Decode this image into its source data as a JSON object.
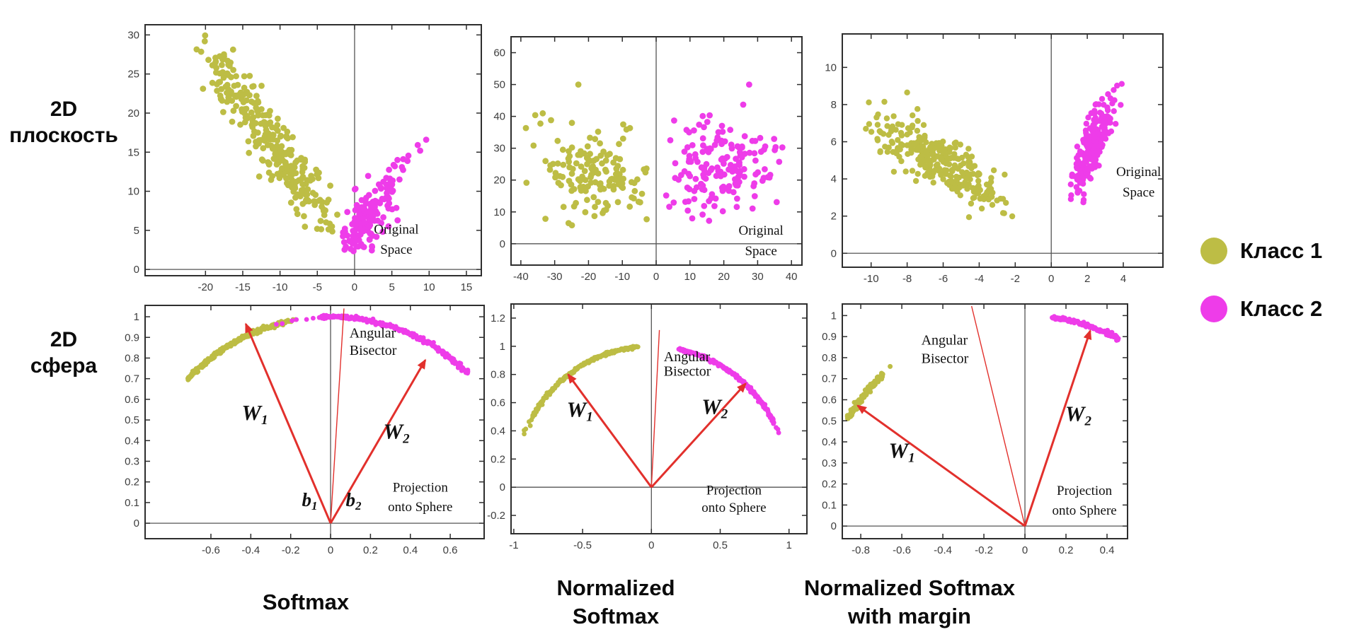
{
  "colors": {
    "class1": "#bdbd45",
    "class2": "#ee3ce9",
    "arrow": "#e2302c",
    "spine": "#2e2e2e",
    "zero_line": "#555555",
    "tick_label": "#3d3d3d",
    "plot_text": "#111111"
  },
  "row_labels": [
    {
      "lines": [
        "2D",
        "плоскость"
      ]
    },
    {
      "lines": [
        "2D",
        "сфера"
      ]
    }
  ],
  "captions": [
    {
      "lines": [
        "Softmax"
      ]
    },
    {
      "lines": [
        "Normalized",
        "Softmax"
      ]
    },
    {
      "lines": [
        "Normalized Softmax",
        "with margin"
      ]
    }
  ],
  "legend": {
    "items": [
      {
        "label": "Класс 1",
        "colorKey": "class1"
      },
      {
        "label": "Класс 2",
        "colorKey": "class2"
      }
    ]
  },
  "chart_data": [
    {
      "id": "original-space-softmax",
      "type": "scatter",
      "method": "Softmax",
      "space": "Original Space",
      "xlim": [
        -28.1,
        17.0
      ],
      "ylim": [
        -0.8,
        31.3
      ],
      "xticks": [
        -20,
        -15,
        -10,
        -5,
        0,
        5,
        10,
        15
      ],
      "yticks": [
        0,
        5,
        10,
        15,
        20,
        25,
        30
      ],
      "zero_lines": true,
      "grid": false,
      "series": [
        {
          "name": "Класс 1",
          "colorKey": "class1",
          "marker": 4.4,
          "gen": {
            "kind": "cluster",
            "seed": 101,
            "n": 300,
            "cx": -11,
            "cy": 16.3,
            "sx": 4.4,
            "sy": 2.3,
            "shear": -1.28,
            "clipX": [
              -21.5,
              -2.2
            ],
            "clipY": [
              3.5,
              30.5
            ]
          },
          "extras": []
        },
        {
          "name": "Класс 2",
          "colorKey": "class2",
          "marker": 4.4,
          "gen": {
            "kind": "cluster",
            "seed": 102,
            "n": 165,
            "cx": 2.0,
            "cy": 6.8,
            "sx": 2.4,
            "sy": 1.9,
            "shear": 1.05,
            "clipX": [
              -1.6,
              10.2
            ],
            "clipY": [
              2.2,
              17.0
            ]
          },
          "extras": [
            [
              9.6,
              16.6
            ],
            [
              8.8,
              15.2
            ]
          ]
        }
      ],
      "texts": [
        {
          "t": "Original",
          "x": 5.6,
          "y": 4.6,
          "s": 19,
          "a": "middle"
        },
        {
          "t": "Space",
          "x": 5.6,
          "y": 2.0,
          "s": 19,
          "a": "middle"
        }
      ],
      "arrows": [],
      "wlabels": []
    },
    {
      "id": "original-space-normalized-softmax",
      "type": "scatter",
      "method": "Normalized Softmax",
      "space": "Original Space",
      "xlim": [
        -42.9,
        43.1
      ],
      "ylim": [
        -6.7,
        65.0
      ],
      "xticks": [
        -40,
        -30,
        -20,
        -10,
        0,
        10,
        20,
        30,
        40
      ],
      "yticks": [
        0,
        10,
        20,
        30,
        40,
        50,
        60
      ],
      "zero_lines": true,
      "grid": false,
      "series": [
        {
          "name": "Класс 1",
          "colorKey": "class1",
          "marker": 4.4,
          "gen": {
            "kind": "cluster",
            "seed": 201,
            "n": 150,
            "cx": -17.5,
            "cy": 22.5,
            "sx": 8.6,
            "sy": 7.6,
            "shear": -0.12,
            "clipX": [
              -41,
              -2.5
            ],
            "clipY": [
              4.5,
              44
            ]
          },
          "extras": [
            [
              -23,
              50
            ]
          ]
        },
        {
          "name": "Класс 2",
          "colorKey": "class2",
          "marker": 4.4,
          "gen": {
            "kind": "cluster",
            "seed": 202,
            "n": 160,
            "cx": 17.5,
            "cy": 24.5,
            "sx": 9.2,
            "sy": 7.6,
            "shear": 0.1,
            "clipX": [
              2.5,
              41.5
            ],
            "clipY": [
              7,
              46
            ]
          },
          "extras": [
            [
              27.5,
              50
            ]
          ]
        }
      ],
      "texts": [
        {
          "t": "Original",
          "x": 31,
          "y": 2.8,
          "s": 19,
          "a": "middle"
        },
        {
          "t": "Space",
          "x": 31,
          "y": -3.6,
          "s": 19,
          "a": "middle"
        }
      ],
      "arrows": [],
      "wlabels": []
    },
    {
      "id": "original-space-normalized-softmax-margin",
      "type": "scatter",
      "method": "Normalized Softmax with margin",
      "space": "Original Space",
      "xlim": [
        -11.6,
        6.2
      ],
      "ylim": [
        -0.75,
        11.8
      ],
      "xticks": [
        -10,
        -8,
        -6,
        -4,
        -2,
        0,
        2,
        4
      ],
      "yticks": [
        0,
        2,
        4,
        6,
        8,
        10
      ],
      "zero_lines": true,
      "grid": false,
      "series": [
        {
          "name": "Класс 1",
          "colorKey": "class1",
          "marker": 4.2,
          "gen": {
            "kind": "cluster",
            "seed": 301,
            "n": 280,
            "cx": -6.3,
            "cy": 5.0,
            "sx": 1.95,
            "sy": 0.7,
            "shear": -0.5,
            "clipX": [
              -10.8,
              -2.1
            ],
            "clipY": [
              1.8,
              8.2
            ]
          },
          "extras": [
            [
              -8,
              8.65
            ]
          ]
        },
        {
          "name": "Класс 2",
          "colorKey": "class2",
          "marker": 4.2,
          "gen": {
            "kind": "cluster",
            "seed": 302,
            "n": 210,
            "cx": 2.35,
            "cy": 5.9,
            "sx": 0.6,
            "sy": 0.95,
            "shear": 1.95,
            "clipX": [
              1.0,
              4.4
            ],
            "clipY": [
              2.6,
              9.4
            ]
          },
          "extras": []
        }
      ],
      "texts": [
        {
          "t": "Original",
          "x": 4.85,
          "y": 4.15,
          "s": 19,
          "a": "middle"
        },
        {
          "t": "Space",
          "x": 4.85,
          "y": 3.05,
          "s": 19,
          "a": "middle"
        }
      ],
      "arrows": [],
      "wlabels": []
    },
    {
      "id": "sphere-softmax",
      "type": "scatter",
      "method": "Softmax",
      "space": "Projection onto Sphere",
      "xlim": [
        -0.93,
        0.77
      ],
      "ylim": [
        -0.075,
        1.055
      ],
      "xticks": [
        -0.6,
        -0.4,
        -0.2,
        0,
        0.2,
        0.4,
        0.6
      ],
      "yticks": [
        0,
        0.1,
        0.2,
        0.3,
        0.4,
        0.5,
        0.6,
        0.7,
        0.8,
        0.9,
        1
      ],
      "zero_lines": true,
      "grid": false,
      "series": [
        {
          "name": "Класс 1",
          "colorKey": "class1",
          "marker": 3.4,
          "gen": {
            "kind": "arc",
            "seed": 401,
            "n": 230,
            "a0": 135.8,
            "a1": 102.3,
            "r": 1.0,
            "jitter": 0.005
          },
          "extras": []
        },
        {
          "name": "Класс 1",
          "colorKey": "class1",
          "marker": 3.4,
          "gen": {
            "kind": "arc",
            "seed": 403,
            "n": 4,
            "a0": 102.0,
            "a1": 99.8,
            "r": 1.0,
            "jitter": 0.004
          },
          "extras": []
        },
        {
          "name": "Класс 2",
          "colorKey": "class2",
          "marker": 3.4,
          "gen": {
            "kind": "arc",
            "seed": 404,
            "n": 7,
            "a0": 105.5,
            "a1": 93.5,
            "r": 1.0,
            "jitter": 0.004
          },
          "extras": []
        },
        {
          "name": "Класс 2",
          "colorKey": "class2",
          "marker": 3.4,
          "gen": {
            "kind": "arc",
            "seed": 402,
            "n": 240,
            "a0": 93.0,
            "a1": 46.6,
            "r": 1.0,
            "jitter": 0.005
          },
          "extras": []
        }
      ],
      "texts": [
        {
          "t": "Angular",
          "x": 0.095,
          "y": 0.9,
          "s": 20,
          "a": "start"
        },
        {
          "t": "Bisector",
          "x": 0.095,
          "y": 0.815,
          "s": 20,
          "a": "start"
        },
        {
          "t": "Projection",
          "x": 0.45,
          "y": 0.152,
          "s": 19,
          "a": "middle"
        },
        {
          "t": "onto Sphere",
          "x": 0.45,
          "y": 0.058,
          "s": 19,
          "a": "middle"
        }
      ],
      "arrows": [
        {
          "name": "W1-vector",
          "x": -0.425,
          "y": 0.965,
          "w": 3,
          "head": true
        },
        {
          "name": "W2-vector",
          "x": 0.475,
          "y": 0.79,
          "w": 3,
          "head": true
        },
        {
          "name": "angular-bisector",
          "x": 0.067,
          "y": 1.04,
          "w": 1.4,
          "head": false
        }
      ],
      "wlabels": [
        {
          "t": "W",
          "sub": "1",
          "x": -0.38,
          "y": 0.5,
          "s": 31
        },
        {
          "t": "W",
          "sub": "2",
          "x": 0.33,
          "y": 0.41,
          "s": 31
        },
        {
          "t": "b",
          "sub": "1",
          "x": -0.105,
          "y": 0.082,
          "s": 27
        },
        {
          "t": "b",
          "sub": "2",
          "x": 0.115,
          "y": 0.082,
          "s": 27
        }
      ]
    },
    {
      "id": "sphere-normalized-softmax",
      "type": "scatter",
      "method": "Normalized Softmax",
      "space": "Projection onto Sphere",
      "xlim": [
        -1.02,
        1.13
      ],
      "ylim": [
        -0.33,
        1.3
      ],
      "xticks": [
        -1,
        -0.5,
        0,
        0.5,
        1
      ],
      "yticks": [
        -0.2,
        0,
        0.2,
        0.4,
        0.6,
        0.8,
        1,
        1.2
      ],
      "zero_lines": true,
      "grid": false,
      "series": [
        {
          "name": "Класс 1",
          "colorKey": "class1",
          "marker": 3.4,
          "gen": {
            "kind": "arc",
            "seed": 501,
            "n": 200,
            "a0": 149.5,
            "a1": 95.5,
            "r": 1.0,
            "jitter": 0.005
          },
          "extras": []
        },
        {
          "name": "Класс 1",
          "colorKey": "class1",
          "marker": 3.4,
          "gen": {
            "kind": "arc",
            "seed": 503,
            "n": 7,
            "a0": 157.5,
            "a1": 150.5,
            "r": 1.0,
            "jitter": 0.006
          },
          "extras": []
        },
        {
          "name": "Класс 2",
          "colorKey": "class2",
          "marker": 3.4,
          "gen": {
            "kind": "arc",
            "seed": 502,
            "n": 200,
            "a0": 78.5,
            "a1": 27.0,
            "r": 1.0,
            "jitter": 0.005
          },
          "extras": []
        },
        {
          "name": "Класс 2",
          "colorKey": "class2",
          "marker": 3.4,
          "gen": {
            "kind": "arc",
            "seed": 504,
            "n": 3,
            "a0": 25.5,
            "a1": 22.5,
            "r": 1.0,
            "jitter": 0.006
          },
          "extras": []
        }
      ],
      "texts": [
        {
          "t": "Angular",
          "x": 0.09,
          "y": 0.895,
          "s": 20,
          "a": "start"
        },
        {
          "t": "Bisector",
          "x": 0.09,
          "y": 0.79,
          "s": 20,
          "a": "start"
        },
        {
          "t": "Projection",
          "x": 0.6,
          "y": -0.052,
          "s": 19,
          "a": "middle"
        },
        {
          "t": "onto Sphere",
          "x": 0.6,
          "y": -0.175,
          "s": 19,
          "a": "middle"
        }
      ],
      "arrows": [
        {
          "name": "W1-vector",
          "x": -0.605,
          "y": 0.8,
          "w": 3,
          "head": true
        },
        {
          "name": "W2-vector",
          "x": 0.685,
          "y": 0.735,
          "w": 3,
          "head": true
        },
        {
          "name": "angular-bisector",
          "x": 0.058,
          "y": 1.115,
          "w": 1.4,
          "head": false
        }
      ],
      "wlabels": [
        {
          "t": "W",
          "sub": "1",
          "x": -0.52,
          "y": 0.5,
          "s": 31
        },
        {
          "t": "W",
          "sub": "2",
          "x": 0.46,
          "y": 0.52,
          "s": 31
        }
      ]
    },
    {
      "id": "sphere-normalized-softmax-margin",
      "type": "scatter",
      "method": "Normalized Softmax with margin",
      "space": "Projection onto Sphere",
      "xlim": [
        -0.89,
        0.5
      ],
      "ylim": [
        -0.06,
        1.055
      ],
      "xticks": [
        -0.8,
        -0.6,
        -0.4,
        -0.2,
        0,
        0.2,
        0.4
      ],
      "yticks": [
        0,
        0.1,
        0.2,
        0.3,
        0.4,
        0.5,
        0.6,
        0.7,
        0.8,
        0.9,
        1
      ],
      "zero_lines": true,
      "grid": false,
      "series": [
        {
          "name": "Класс 1",
          "colorKey": "class1",
          "marker": 3.5,
          "gen": {
            "kind": "arc",
            "seed": 601,
            "n": 95,
            "a0": 149.5,
            "a1": 133.8,
            "r": 1.0,
            "jitter": 0.006
          },
          "extras": [
            [
              -0.657,
              0.758
            ]
          ]
        },
        {
          "name": "Класс 2",
          "colorKey": "class2",
          "marker": 3.5,
          "gen": {
            "kind": "arc",
            "seed": 602,
            "n": 95,
            "a0": 82.3,
            "a1": 62.8,
            "r": 1.0,
            "jitter": 0.005
          },
          "extras": []
        }
      ],
      "texts": [
        {
          "t": "Angular",
          "x": -0.505,
          "y": 0.862,
          "s": 20,
          "a": "start"
        },
        {
          "t": "Bisector",
          "x": -0.505,
          "y": 0.775,
          "s": 20,
          "a": "start"
        },
        {
          "t": "Projection",
          "x": 0.29,
          "y": 0.148,
          "s": 19,
          "a": "middle"
        },
        {
          "t": "onto Sphere",
          "x": 0.29,
          "y": 0.055,
          "s": 19,
          "a": "middle"
        }
      ],
      "arrows": [
        {
          "name": "W1-vector",
          "x": -0.815,
          "y": 0.572,
          "w": 3,
          "head": true
        },
        {
          "name": "W2-vector",
          "x": 0.318,
          "y": 0.928,
          "w": 3,
          "head": true
        },
        {
          "name": "angular-bisector",
          "x": -0.26,
          "y": 1.045,
          "w": 1.4,
          "head": false
        }
      ],
      "wlabels": [
        {
          "t": "W",
          "sub": "1",
          "x": -0.6,
          "y": 0.325,
          "s": 31
        },
        {
          "t": "W",
          "sub": "2",
          "x": 0.26,
          "y": 0.5,
          "s": 31
        }
      ]
    }
  ]
}
